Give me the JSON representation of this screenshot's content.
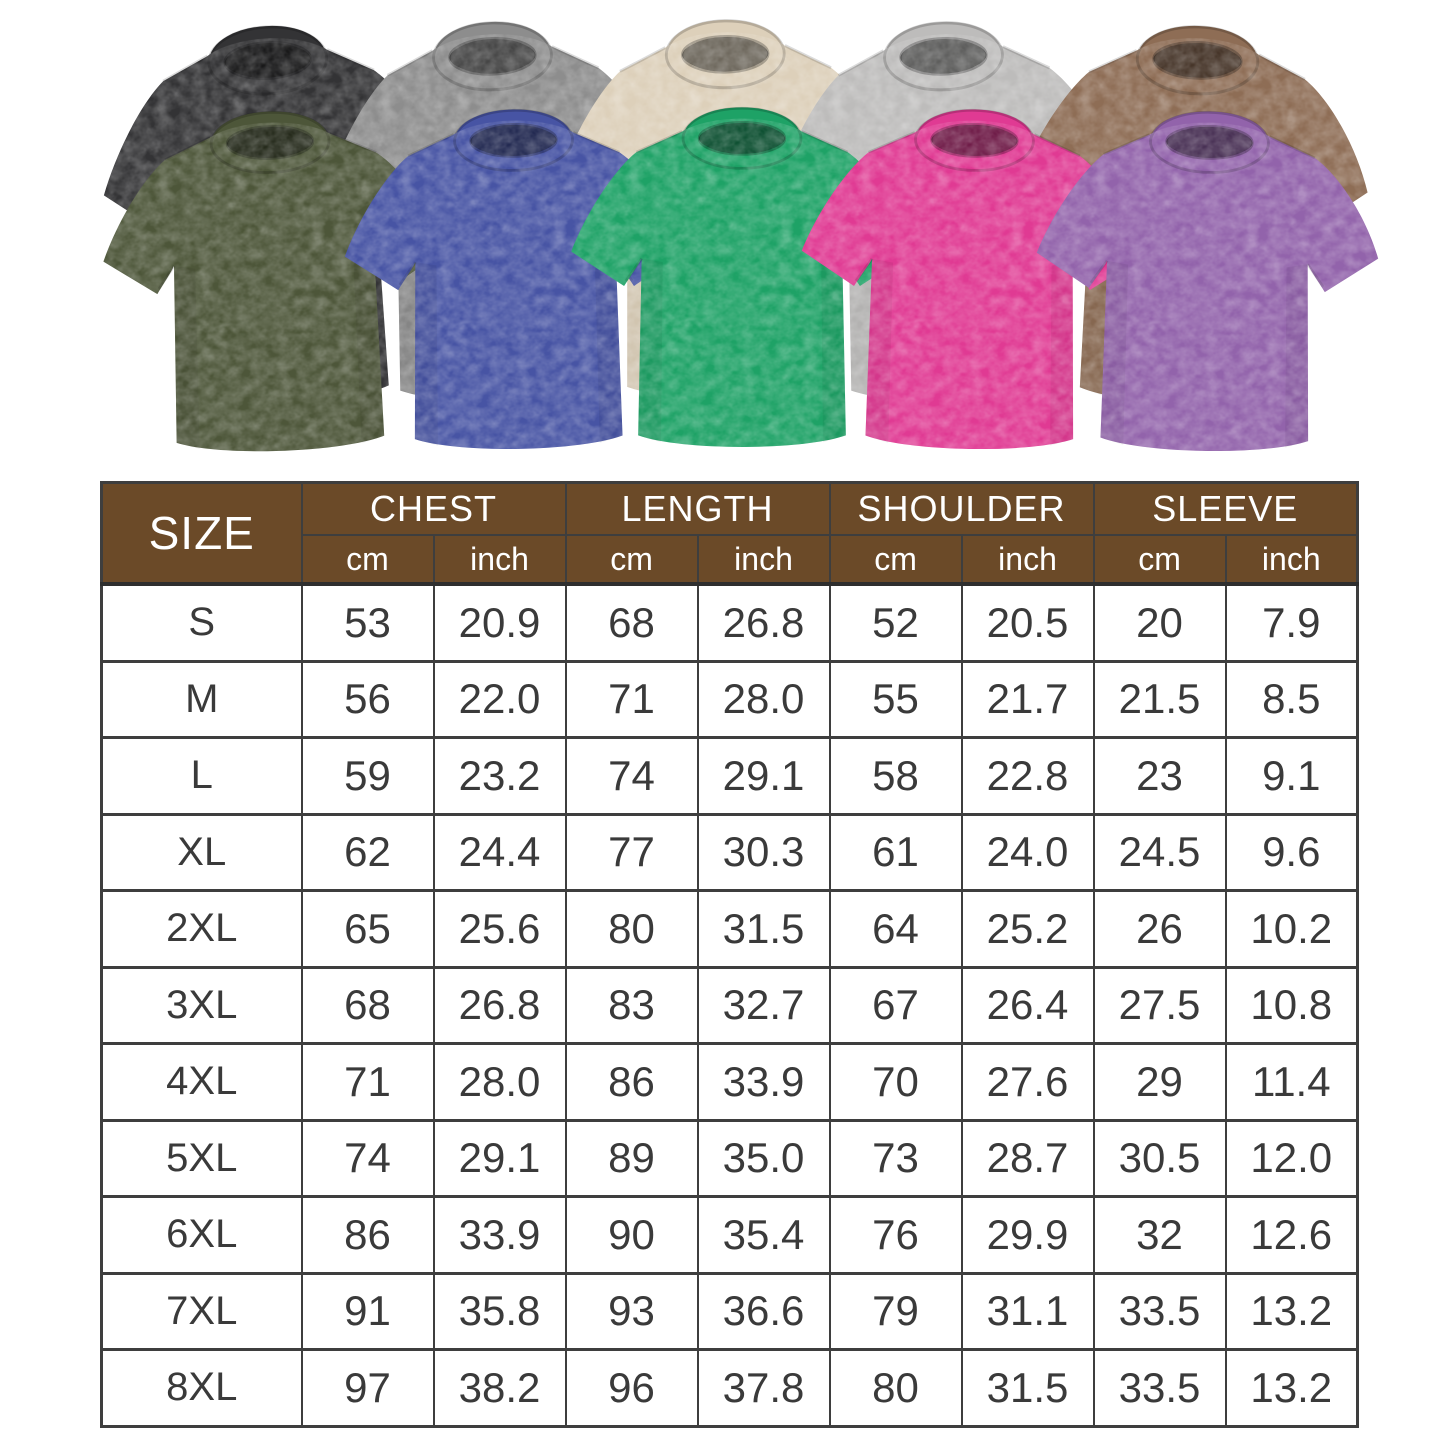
{
  "theme": {
    "header_bg": "#6b4a28",
    "header_text": "#ffffff",
    "table_border": "#3e3e3e",
    "cell_text": "#3a3a3a"
  },
  "product_gallery": {
    "description": "ten acid-washed oversized t-shirts in two overlapping rows",
    "shirts": [
      {
        "name": "black",
        "color": "#333335",
        "row": "back"
      },
      {
        "name": "gray",
        "color": "#8d8d8d",
        "row": "back"
      },
      {
        "name": "cream",
        "color": "#ddd0ba",
        "row": "back"
      },
      {
        "name": "light-gray",
        "color": "#bdbcbb",
        "row": "back"
      },
      {
        "name": "brown",
        "color": "#8e6d55",
        "row": "back"
      },
      {
        "name": "army-green",
        "color": "#4d5639",
        "row": "front"
      },
      {
        "name": "blue",
        "color": "#4754a4",
        "row": "front"
      },
      {
        "name": "green",
        "color": "#1ea266",
        "row": "front"
      },
      {
        "name": "rose",
        "color": "#e03a93",
        "row": "front"
      },
      {
        "name": "purple",
        "color": "#9263ab",
        "row": "front"
      }
    ]
  },
  "size_chart": {
    "header": {
      "size_label": "SIZE",
      "groups": [
        "CHEST",
        "LENGTH",
        "SHOULDER",
        "SLEEVE"
      ],
      "units": [
        "cm",
        "inch"
      ]
    },
    "rows": [
      {
        "size": "S",
        "values": [
          "53",
          "20.9",
          "68",
          "26.8",
          "52",
          "20.5",
          "20",
          "7.9"
        ]
      },
      {
        "size": "M",
        "values": [
          "56",
          "22.0",
          "71",
          "28.0",
          "55",
          "21.7",
          "21.5",
          "8.5"
        ]
      },
      {
        "size": "L",
        "values": [
          "59",
          "23.2",
          "74",
          "29.1",
          "58",
          "22.8",
          "23",
          "9.1"
        ]
      },
      {
        "size": "XL",
        "values": [
          "62",
          "24.4",
          "77",
          "30.3",
          "61",
          "24.0",
          "24.5",
          "9.6"
        ]
      },
      {
        "size": "2XL",
        "values": [
          "65",
          "25.6",
          "80",
          "31.5",
          "64",
          "25.2",
          "26",
          "10.2"
        ]
      },
      {
        "size": "3XL",
        "values": [
          "68",
          "26.8",
          "83",
          "32.7",
          "67",
          "26.4",
          "27.5",
          "10.8"
        ]
      },
      {
        "size": "4XL",
        "values": [
          "71",
          "28.0",
          "86",
          "33.9",
          "70",
          "27.6",
          "29",
          "11.4"
        ]
      },
      {
        "size": "5XL",
        "values": [
          "74",
          "29.1",
          "89",
          "35.0",
          "73",
          "28.7",
          "30.5",
          "12.0"
        ]
      },
      {
        "size": "6XL",
        "values": [
          "86",
          "33.9",
          "90",
          "35.4",
          "76",
          "29.9",
          "32",
          "12.6"
        ]
      },
      {
        "size": "7XL",
        "values": [
          "91",
          "35.8",
          "93",
          "36.6",
          "79",
          "31.1",
          "33.5",
          "13.2"
        ]
      },
      {
        "size": "8XL",
        "values": [
          "97",
          "38.2",
          "96",
          "37.8",
          "80",
          "31.5",
          "33.5",
          "13.2"
        ]
      }
    ]
  },
  "chart_data": {
    "type": "table",
    "title": "T-shirt size chart",
    "column_groups": [
      "CHEST",
      "LENGTH",
      "SHOULDER",
      "SLEEVE"
    ],
    "units_per_group": [
      "cm",
      "inch"
    ],
    "sizes": [
      "S",
      "M",
      "L",
      "XL",
      "2XL",
      "3XL",
      "4XL",
      "5XL",
      "6XL",
      "7XL",
      "8XL"
    ],
    "rows": [
      [
        53,
        20.9,
        68,
        26.8,
        52,
        20.5,
        20,
        7.9
      ],
      [
        56,
        22.0,
        71,
        28.0,
        55,
        21.7,
        21.5,
        8.5
      ],
      [
        59,
        23.2,
        74,
        29.1,
        58,
        22.8,
        23,
        9.1
      ],
      [
        62,
        24.4,
        77,
        30.3,
        61,
        24.0,
        24.5,
        9.6
      ],
      [
        65,
        25.6,
        80,
        31.5,
        64,
        25.2,
        26,
        10.2
      ],
      [
        68,
        26.8,
        83,
        32.7,
        67,
        26.4,
        27.5,
        10.8
      ],
      [
        71,
        28.0,
        86,
        33.9,
        70,
        27.6,
        29,
        11.4
      ],
      [
        74,
        29.1,
        89,
        35.0,
        73,
        28.7,
        30.5,
        12.0
      ],
      [
        86,
        33.9,
        90,
        35.4,
        76,
        29.9,
        32,
        12.6
      ],
      [
        91,
        35.8,
        93,
        36.6,
        79,
        31.1,
        33.5,
        13.2
      ],
      [
        97,
        38.2,
        96,
        37.8,
        80,
        31.5,
        33.5,
        13.2
      ]
    ]
  }
}
